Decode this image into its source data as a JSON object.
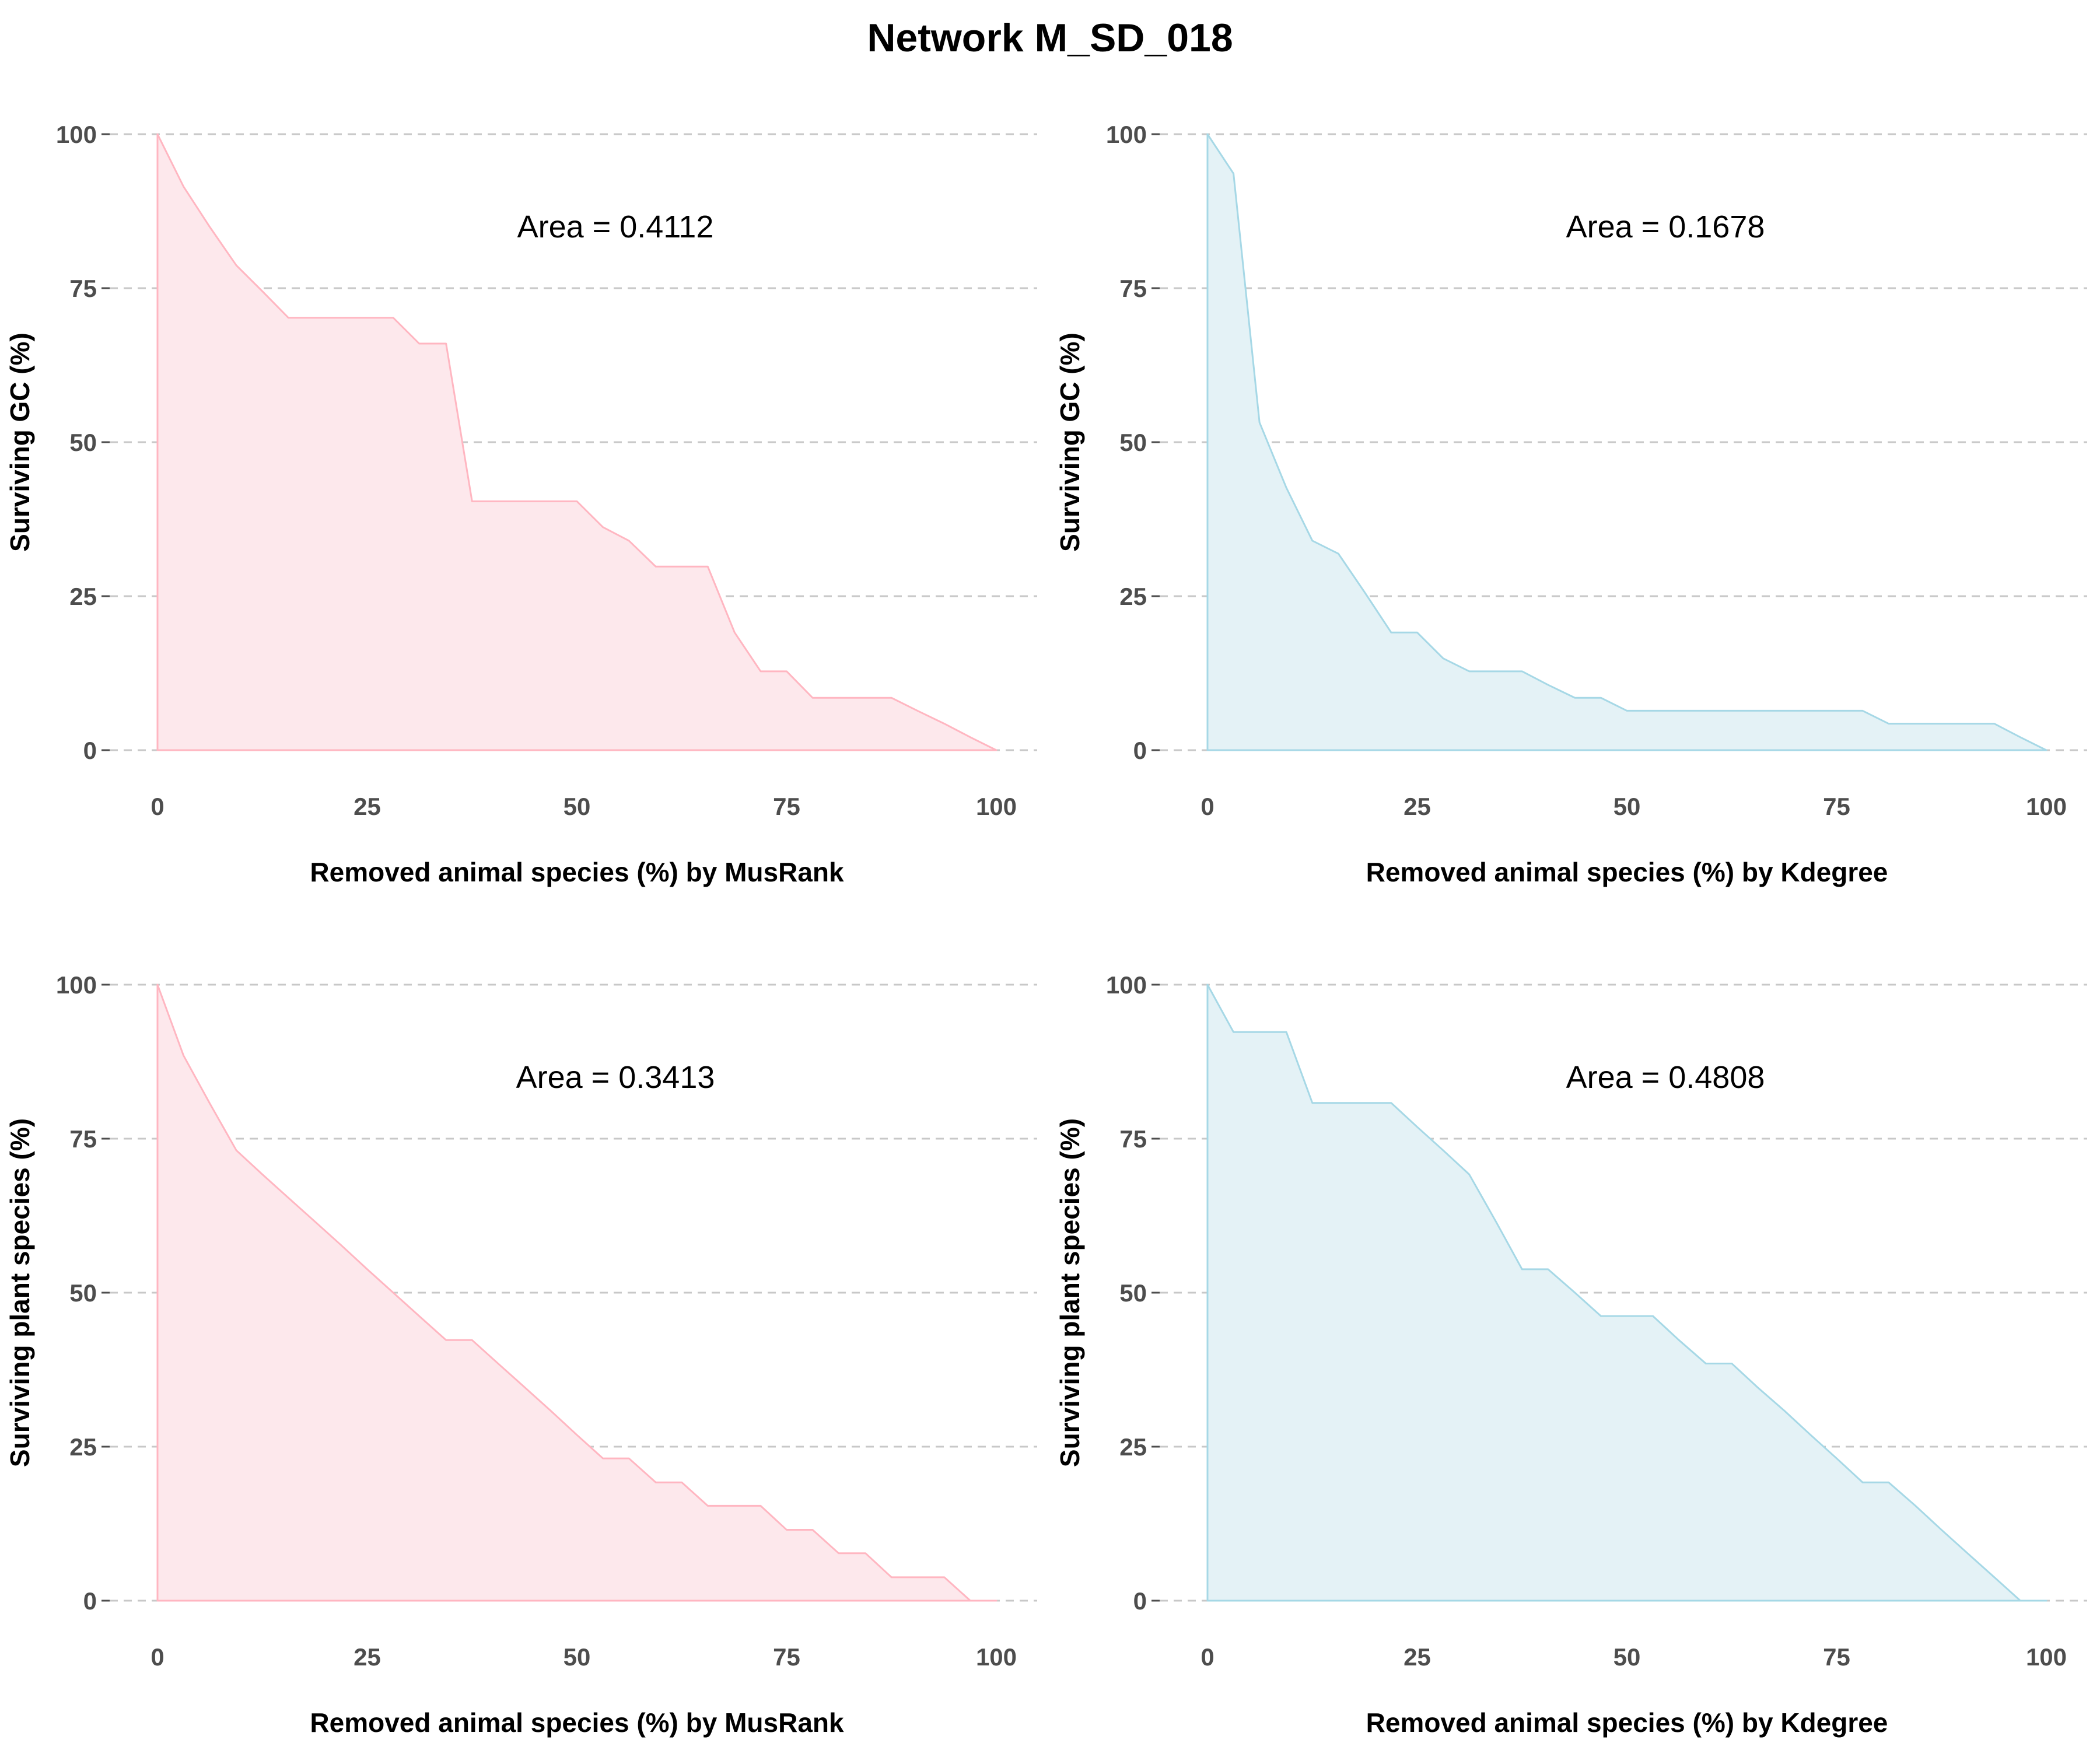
{
  "page_title": "Network M_SD_018",
  "chart_data": [
    {
      "type": "area",
      "ylabel": "Surviving GC (%)",
      "xlabel": "Removed animal species (%) by MusRank",
      "annotation": "Area = 0.4112",
      "xlim": [
        0,
        100
      ],
      "ylim": [
        0,
        100
      ],
      "xticks": [
        "0",
        "25",
        "50",
        "75",
        "100"
      ],
      "yticks": [
        "0",
        "25",
        "50",
        "75",
        "100"
      ],
      "grid": "horizontal dashed",
      "color": "#ffb6c1",
      "fill": "#fde8ec",
      "x": [
        0,
        3.1,
        6.2,
        9.4,
        12.5,
        15.6,
        18.8,
        21.9,
        25,
        28.1,
        31.2,
        34.4,
        37.5,
        40.6,
        43.8,
        46.9,
        50,
        53.1,
        56.2,
        59.4,
        62.5,
        65.6,
        68.8,
        71.9,
        75,
        78.1,
        81.2,
        84.4,
        87.5,
        90.6,
        93.8,
        96.9,
        100
      ],
      "y": [
        100,
        91.5,
        85,
        78.7,
        74.5,
        70.2,
        70.2,
        70.2,
        70.2,
        70.2,
        66,
        66,
        40.4,
        40.4,
        40.4,
        40.4,
        40.4,
        36.2,
        34,
        29.8,
        29.8,
        29.8,
        19.1,
        12.8,
        12.8,
        8.5,
        8.5,
        8.5,
        8.5,
        6.4,
        4.3,
        2.1,
        0
      ]
    },
    {
      "type": "area",
      "ylabel": "Surviving GC (%)",
      "xlabel": "Removed animal species (%) by Kdegree",
      "annotation": "Area = 0.1678",
      "xlim": [
        0,
        100
      ],
      "ylim": [
        0,
        100
      ],
      "xticks": [
        "0",
        "25",
        "50",
        "75",
        "100"
      ],
      "yticks": [
        "0",
        "25",
        "50",
        "75",
        "100"
      ],
      "grid": "horizontal dashed",
      "color": "#a6d8e6",
      "fill": "#e4f2f6",
      "x": [
        0,
        3.1,
        6.2,
        9.4,
        12.5,
        15.6,
        18.8,
        21.9,
        25,
        28.1,
        31.2,
        34.4,
        37.5,
        40.6,
        43.8,
        46.9,
        50,
        53.1,
        56.2,
        59.4,
        62.5,
        65.6,
        68.8,
        71.9,
        75,
        78.1,
        81.2,
        84.4,
        87.5,
        90.6,
        93.8,
        96.9,
        100
      ],
      "y": [
        100,
        93.6,
        53.2,
        42.6,
        34,
        31.9,
        25.5,
        19.1,
        19.1,
        14.9,
        12.8,
        12.8,
        12.8,
        10.6,
        8.5,
        8.5,
        6.4,
        6.4,
        6.4,
        6.4,
        6.4,
        6.4,
        6.4,
        6.4,
        6.4,
        6.4,
        4.3,
        4.3,
        4.3,
        4.3,
        4.3,
        2.1,
        0
      ]
    },
    {
      "type": "area",
      "ylabel": "Surviving plant species (%)",
      "xlabel": "Removed animal species (%) by MusRank",
      "annotation": "Area = 0.3413",
      "xlim": [
        0,
        100
      ],
      "ylim": [
        0,
        100
      ],
      "xticks": [
        "0",
        "25",
        "50",
        "75",
        "100"
      ],
      "yticks": [
        "0",
        "25",
        "50",
        "75",
        "100"
      ],
      "grid": "horizontal dashed",
      "color": "#ffb6c1",
      "fill": "#fde8ec",
      "x": [
        0,
        3.1,
        6.2,
        9.4,
        12.5,
        15.6,
        18.8,
        21.9,
        25,
        28.1,
        31.2,
        34.4,
        37.5,
        40.6,
        43.8,
        46.9,
        50,
        53.1,
        56.2,
        59.4,
        62.5,
        65.6,
        68.8,
        71.9,
        75,
        78.1,
        81.2,
        84.4,
        87.5,
        90.6,
        93.8,
        96.9,
        100
      ],
      "y": [
        100,
        88.5,
        80.8,
        73.1,
        69.2,
        65.4,
        61.5,
        57.7,
        53.8,
        50,
        46.2,
        42.3,
        42.3,
        38.5,
        34.6,
        30.8,
        26.9,
        23.1,
        23.1,
        19.2,
        19.2,
        15.4,
        15.4,
        15.4,
        11.5,
        11.5,
        7.7,
        7.7,
        3.8,
        3.8,
        3.8,
        0,
        0
      ]
    },
    {
      "type": "area",
      "ylabel": "Surviving plant species (%)",
      "xlabel": "Removed animal species (%) by Kdegree",
      "annotation": "Area = 0.4808",
      "xlim": [
        0,
        100
      ],
      "ylim": [
        0,
        100
      ],
      "xticks": [
        "0",
        "25",
        "50",
        "75",
        "100"
      ],
      "yticks": [
        "0",
        "25",
        "50",
        "75",
        "100"
      ],
      "grid": "horizontal dashed",
      "color": "#a6d8e6",
      "fill": "#e4f2f6",
      "x": [
        0,
        3.1,
        6.2,
        9.4,
        12.5,
        15.6,
        18.8,
        21.9,
        25,
        28.1,
        31.2,
        34.4,
        37.5,
        40.6,
        43.8,
        46.9,
        50,
        53.1,
        56.2,
        59.4,
        62.5,
        65.6,
        68.8,
        71.9,
        75,
        78.1,
        81.2,
        84.4,
        87.5,
        90.6,
        93.8,
        96.9,
        100
      ],
      "y": [
        100,
        92.3,
        92.3,
        92.3,
        80.8,
        80.8,
        80.8,
        80.8,
        76.9,
        73.1,
        69.2,
        61.5,
        53.8,
        53.8,
        50,
        46.2,
        46.2,
        46.2,
        42.3,
        38.5,
        38.5,
        34.6,
        30.8,
        26.9,
        23.1,
        19.2,
        19.2,
        15.4,
        11.5,
        7.7,
        3.8,
        0,
        0
      ]
    }
  ]
}
